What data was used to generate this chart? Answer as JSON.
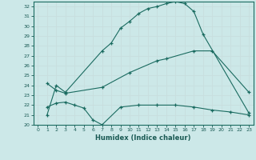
{
  "title": "",
  "xlabel": "Humidex (Indice chaleur)",
  "bg_color": "#cce8e8",
  "grid_color": "#b0d0d0",
  "line_color": "#1a6b60",
  "xlim": [
    -0.5,
    23.5
  ],
  "ylim": [
    20,
    32.5
  ],
  "yticks": [
    20,
    21,
    22,
    23,
    24,
    25,
    26,
    27,
    28,
    29,
    30,
    31,
    32
  ],
  "xticks": [
    0,
    1,
    2,
    3,
    4,
    5,
    6,
    7,
    8,
    9,
    10,
    11,
    12,
    13,
    14,
    15,
    16,
    17,
    18,
    19,
    20,
    21,
    22,
    23
  ],
  "line1_x": [
    1,
    2,
    3,
    7,
    8,
    9,
    10,
    11,
    12,
    13,
    14,
    15,
    16,
    17,
    18,
    23
  ],
  "line1_y": [
    21.0,
    24.0,
    23.3,
    27.5,
    28.3,
    29.8,
    30.5,
    31.3,
    31.8,
    32.0,
    32.3,
    32.5,
    32.3,
    31.5,
    29.2,
    21.2
  ],
  "line2_x": [
    1,
    2,
    3,
    7,
    10,
    13,
    14,
    17,
    19,
    23
  ],
  "line2_y": [
    24.2,
    23.5,
    23.2,
    23.8,
    25.3,
    26.5,
    26.7,
    27.5,
    27.5,
    23.3
  ],
  "line3_x": [
    1,
    2,
    3,
    4,
    5,
    6,
    7,
    9,
    11,
    13,
    15,
    17,
    19,
    21,
    23
  ],
  "line3_y": [
    21.8,
    22.2,
    22.3,
    22.0,
    21.7,
    20.5,
    20.0,
    21.8,
    22.0,
    22.0,
    22.0,
    21.8,
    21.5,
    21.3,
    21.0
  ]
}
